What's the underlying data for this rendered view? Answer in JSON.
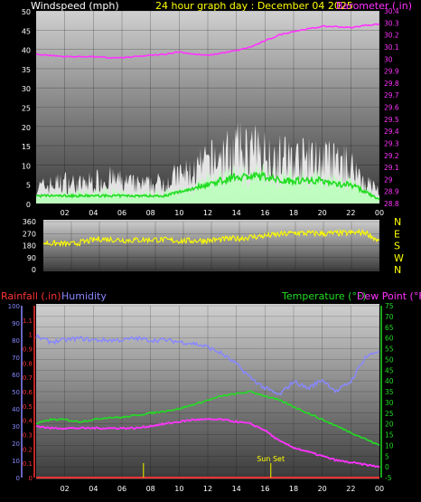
{
  "header": {
    "left_label": "Windspeed (mph)",
    "center_label": "24 hour graph day : December 04 2025",
    "right_label": "Barometer (.in)"
  },
  "colors": {
    "background": "#000000",
    "wind_axis": "#ffffff",
    "barometer": "#ff33ff",
    "title": "#ffff00",
    "gust": "#ffffff",
    "wind_avg": "#22dd22",
    "wind_speed": "#bbffbb",
    "direction": "#ffff00",
    "rain": "#ff3333",
    "humidity": "#8888ff",
    "temperature": "#22dd22",
    "dew_point": "#ff33ff",
    "sun": "#cccc00"
  },
  "x_ticks": [
    "02",
    "04",
    "06",
    "08",
    "10",
    "12",
    "14",
    "16",
    "18",
    "20",
    "22",
    "00"
  ],
  "chart_data": [
    {
      "type": "line",
      "title": "24 hour graph day : December 04 2025",
      "ylabel": "Windspeed (mph)",
      "ylim": [
        0,
        50
      ],
      "y_ticks": [
        "0",
        "5",
        "10",
        "15",
        "20",
        "25",
        "30",
        "35",
        "40",
        "45",
        "50"
      ],
      "y2label": "Barometer (.in)",
      "y2lim": [
        28.8,
        30.4
      ],
      "y2_ticks": [
        "28.8",
        "28.9",
        "29",
        "29.1",
        "29.2",
        "29.3",
        "29.4",
        "29.5",
        "29.6",
        "29.7",
        "29.8",
        "29.9",
        "30",
        "30.1",
        "30.2",
        "30.3",
        "30.4"
      ],
      "x_hours": [
        0,
        1,
        2,
        3,
        4,
        5,
        6,
        7,
        8,
        9,
        10,
        11,
        12,
        13,
        14,
        15,
        16,
        17,
        18,
        19,
        20,
        21,
        22,
        23,
        24
      ],
      "series": [
        {
          "key": "gust",
          "values": [
            5,
            6,
            7,
            6,
            7,
            8,
            7,
            6,
            6,
            7,
            9,
            10,
            13,
            15,
            17,
            17,
            16,
            15,
            14,
            14,
            14,
            13,
            12,
            7,
            4
          ]
        },
        {
          "key": "average",
          "values": [
            2,
            2,
            2,
            2,
            2,
            2,
            2,
            2,
            2,
            2,
            3,
            4,
            5,
            6,
            7,
            7,
            7,
            6,
            6,
            6,
            6,
            5,
            5,
            3,
            1
          ]
        },
        {
          "key": "speed",
          "values": [
            2,
            3,
            3,
            3,
            3,
            4,
            3,
            3,
            3,
            3,
            4,
            5,
            7,
            8,
            9,
            9,
            9,
            8,
            8,
            8,
            8,
            7,
            6,
            4,
            2
          ]
        }
      ],
      "barometer": [
        30.04,
        30.03,
        30.02,
        30.02,
        30.02,
        30.01,
        30.01,
        30.02,
        30.03,
        30.04,
        30.06,
        30.04,
        30.03,
        30.05,
        30.07,
        30.1,
        30.15,
        30.2,
        30.23,
        30.25,
        30.27,
        30.27,
        30.26,
        30.28,
        30.29
      ]
    },
    {
      "type": "line",
      "ylim": [
        0,
        360
      ],
      "y_ticks": [
        "0",
        "90",
        "180",
        "270",
        "360"
      ],
      "compass_labels": [
        "N",
        "W",
        "S",
        "E",
        "N"
      ],
      "x_hours": [
        0,
        2,
        3,
        4,
        6,
        8,
        10,
        12,
        14,
        16,
        18,
        20,
        22,
        23,
        24
      ],
      "values": [
        200,
        190,
        210,
        230,
        220,
        225,
        215,
        220,
        235,
        255,
        275,
        270,
        275,
        280,
        210
      ]
    },
    {
      "type": "line",
      "legend": [
        "Rainfall (.in)",
        "Humidity",
        "Temperature (°F)",
        "Dew Point (°F)"
      ],
      "ylim_left": [
        0,
        100
      ],
      "y_ticks_humidity": [
        "0",
        "10",
        "20",
        "30",
        "40",
        "50",
        "60",
        "70",
        "80",
        "90",
        "100"
      ],
      "ylim_rain": [
        0,
        1.2
      ],
      "y_ticks_rain": [
        "0",
        "0.1",
        "0.2",
        "0.3",
        "0.4",
        "0.5",
        "0.6",
        "0.7",
        "0.8",
        "0.9",
        "1",
        "1.1"
      ],
      "ylim_right": [
        -5,
        75
      ],
      "y_ticks_right": [
        "-5",
        "0",
        "5",
        "10",
        "15",
        "20",
        "25",
        "30",
        "35",
        "40",
        "45",
        "50",
        "55",
        "60",
        "65",
        "70",
        "75"
      ],
      "x_hours": [
        0,
        1,
        2,
        3,
        4,
        5,
        6,
        7,
        8,
        9,
        10,
        11,
        12,
        13,
        14,
        15,
        16,
        17,
        18,
        19,
        20,
        21,
        22,
        23,
        24
      ],
      "humidity": [
        82,
        79,
        80,
        81,
        80,
        80,
        80,
        81,
        80,
        80,
        79,
        78,
        76,
        72,
        66,
        58,
        52,
        48,
        56,
        52,
        57,
        50,
        56,
        70,
        74
      ],
      "temperature": [
        20,
        22,
        22,
        21,
        22,
        23,
        23,
        24,
        25,
        26,
        27,
        29,
        31,
        33,
        34,
        35,
        33,
        31,
        28,
        25,
        22,
        19,
        16,
        13,
        10
      ],
      "dew_point": [
        19,
        18,
        18,
        18,
        18,
        18,
        18,
        18,
        19,
        20,
        21,
        22,
        22,
        22,
        21,
        20,
        17,
        12,
        9,
        7,
        5,
        3,
        2,
        1,
        0
      ],
      "rain": [
        0,
        0,
        0,
        0,
        0,
        0,
        0,
        0,
        0,
        0,
        0,
        0,
        0,
        0,
        0,
        0,
        0,
        0,
        0,
        0,
        0,
        0,
        0,
        0,
        0
      ],
      "sun_markers": [
        7.5,
        16.4
      ],
      "sun_label": "Sun Set"
    }
  ]
}
